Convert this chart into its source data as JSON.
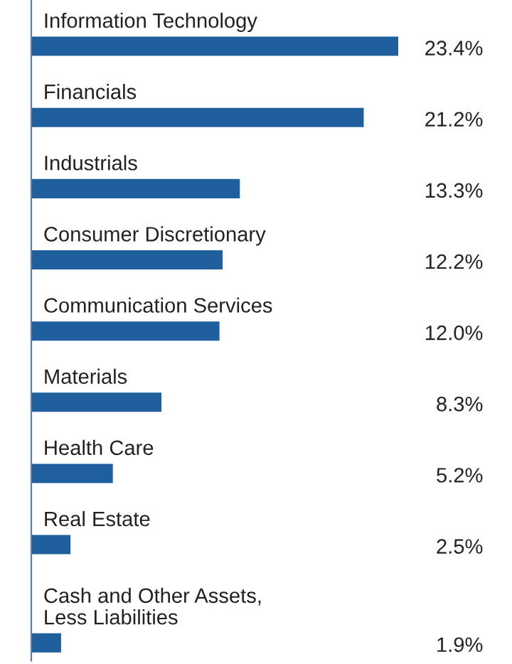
{
  "chart_data": {
    "type": "bar",
    "orientation": "horizontal",
    "categories": [
      "Information Technology",
      "Financials",
      "Industrials",
      "Consumer Discretionary",
      "Communication Services",
      "Materials",
      "Health Care",
      "Real Estate",
      "Cash and Other Assets,\nLess Liabilities"
    ],
    "values": [
      23.4,
      21.2,
      13.3,
      12.2,
      12.0,
      8.3,
      5.2,
      2.5,
      1.9
    ],
    "value_labels": [
      "23.4%",
      "21.2%",
      "13.3%",
      "12.2%",
      "12.0%",
      "8.3%",
      "5.2%",
      "2.5%",
      "1.9%"
    ],
    "color": "#1f5f9e"
  }
}
